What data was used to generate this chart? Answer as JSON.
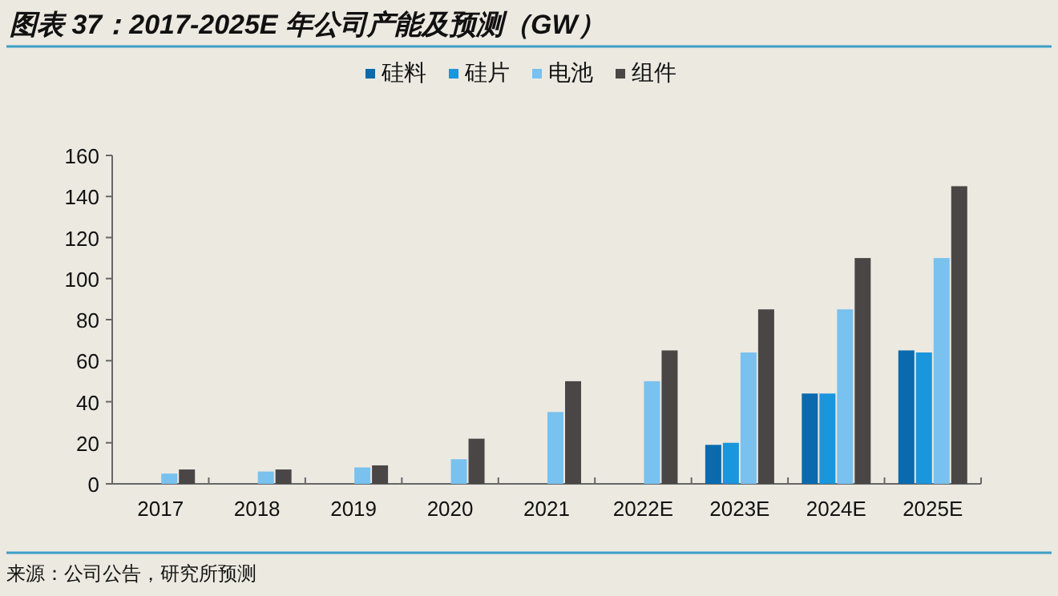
{
  "chart_data": {
    "type": "bar",
    "title": "图表 37：2017-2025E 年公司产能及预测（GW）",
    "categories": [
      "2017",
      "2018",
      "2019",
      "2020",
      "2021",
      "2022E",
      "2023E",
      "2024E",
      "2025E"
    ],
    "series": [
      {
        "name": "硅料",
        "color": "#0a6aad",
        "values": [
          null,
          null,
          null,
          null,
          null,
          null,
          19,
          44,
          65
        ]
      },
      {
        "name": "硅片",
        "color": "#1a96dc",
        "values": [
          null,
          null,
          null,
          null,
          null,
          null,
          20,
          44,
          64
        ]
      },
      {
        "name": "电池",
        "color": "#79c1ee",
        "values": [
          5,
          6,
          8,
          12,
          35,
          50,
          64,
          85,
          110
        ]
      },
      {
        "name": "组件",
        "color": "#4a4646",
        "values": [
          7,
          7,
          9,
          22,
          50,
          65,
          85,
          110,
          145
        ]
      }
    ],
    "ylim": [
      0,
      160
    ],
    "yticks": [
      0,
      20,
      40,
      60,
      80,
      100,
      120,
      140,
      160
    ],
    "grid": false,
    "legend": "top",
    "annotations": [
      "来源：公司公告，研究所预测"
    ]
  }
}
